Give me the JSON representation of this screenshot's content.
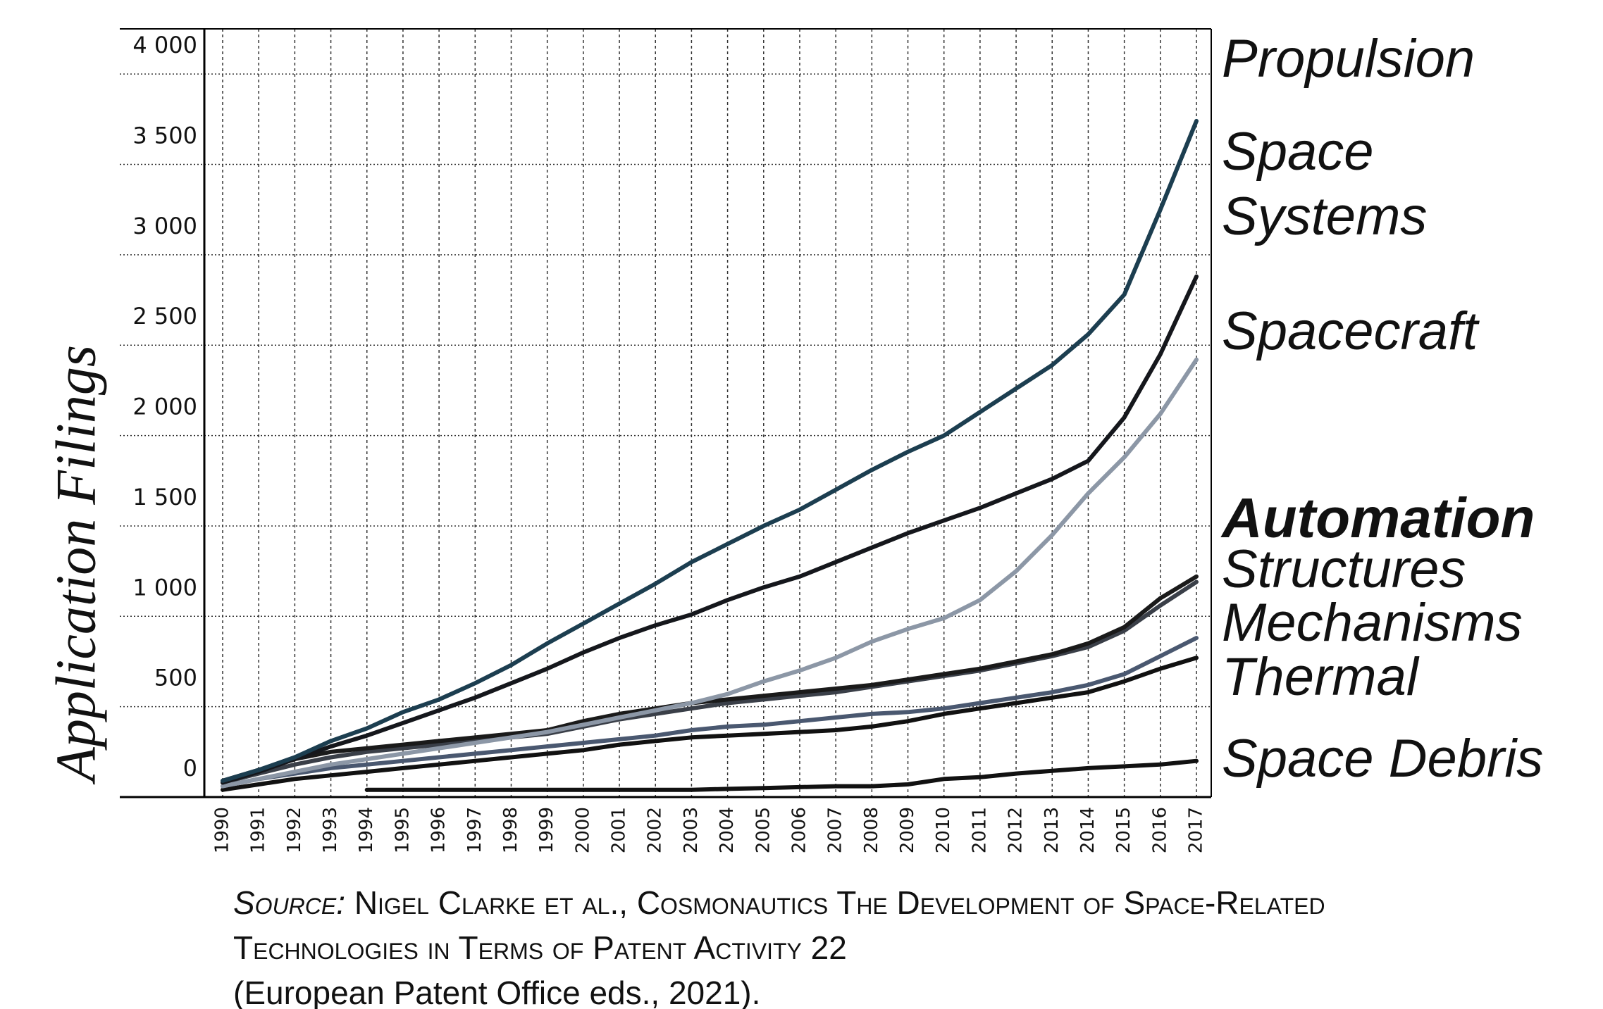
{
  "chart_data": {
    "type": "line",
    "y_label": "Application Filings",
    "categories": [
      "1990",
      "1991",
      "1992",
      "1993",
      "1994",
      "1995",
      "1996",
      "1997",
      "1998",
      "1999",
      "2000",
      "2001",
      "2002",
      "2003",
      "2004",
      "2005",
      "2006",
      "2007",
      "2008",
      "2009",
      "2010",
      "2011",
      "2012",
      "2013",
      "2014",
      "2015",
      "2016",
      "2017"
    ],
    "ylim": [
      0,
      4250
    ],
    "yticks": [
      0,
      500,
      {
        "value": 1000,
        "label": "1 000"
      },
      {
        "value": 1500,
        "label": "1 500"
      },
      {
        "value": 2000,
        "label": "2 000"
      },
      {
        "value": 2500,
        "label": "2 500"
      },
      {
        "value": 3000,
        "label": "3 000"
      },
      {
        "value": 3500,
        "label": "3 500"
      },
      {
        "value": 4000,
        "label": "4 000"
      }
    ],
    "grid": true,
    "series": [
      {
        "name": "Propulsion",
        "color": "#1c3e50",
        "values": [
          90,
          150,
          220,
          310,
          380,
          470,
          540,
          630,
          730,
          850,
          960,
          1070,
          1180,
          1300,
          1400,
          1500,
          1590,
          1700,
          1810,
          1910,
          2000,
          2130,
          2260,
          2390,
          2560,
          2780,
          3250,
          3740
        ]
      },
      {
        "name": "Space Systems",
        "color": "#15171c",
        "values": [
          80,
          140,
          210,
          280,
          340,
          410,
          480,
          550,
          630,
          710,
          800,
          880,
          950,
          1010,
          1090,
          1160,
          1220,
          1300,
          1380,
          1460,
          1530,
          1600,
          1680,
          1760,
          1860,
          2100,
          2450,
          2880
        ]
      },
      {
        "name": "Spacecraft",
        "color": "#8c97a6",
        "values": [
          60,
          100,
          140,
          180,
          210,
          240,
          270,
          300,
          330,
          360,
          400,
          440,
          480,
          520,
          570,
          640,
          700,
          770,
          860,
          930,
          990,
          1090,
          1250,
          1450,
          1680,
          1880,
          2120,
          2420
        ]
      },
      {
        "name": "Automation",
        "color": "#1a1a1a",
        "values": [
          90,
          150,
          210,
          250,
          270,
          290,
          310,
          330,
          350,
          370,
          420,
          460,
          490,
          520,
          540,
          560,
          580,
          600,
          620,
          650,
          680,
          710,
          750,
          790,
          850,
          940,
          1100,
          1220
        ]
      },
      {
        "name": "Structures",
        "color": "#3a3f48",
        "values": [
          80,
          130,
          180,
          220,
          250,
          270,
          290,
          310,
          330,
          350,
          390,
          430,
          460,
          490,
          520,
          540,
          560,
          580,
          610,
          640,
          670,
          700,
          740,
          780,
          830,
          920,
          1060,
          1190
        ]
      },
      {
        "name": "Mechanisms",
        "color": "#4a5870",
        "values": [
          60,
          100,
          130,
          160,
          180,
          200,
          220,
          240,
          260,
          280,
          300,
          320,
          340,
          370,
          390,
          400,
          420,
          440,
          460,
          470,
          490,
          520,
          550,
          580,
          620,
          680,
          780,
          880
        ]
      },
      {
        "name": "Thermal",
        "color": "#111111",
        "values": [
          40,
          70,
          100,
          120,
          140,
          160,
          180,
          200,
          220,
          240,
          260,
          290,
          310,
          330,
          340,
          350,
          360,
          370,
          390,
          420,
          460,
          490,
          520,
          550,
          580,
          640,
          710,
          770
        ]
      },
      {
        "name": "Space Debris",
        "color": "#111111",
        "values": [
          null,
          null,
          null,
          null,
          40,
          40,
          40,
          40,
          40,
          40,
          40,
          40,
          40,
          40,
          45,
          50,
          55,
          60,
          60,
          70,
          100,
          110,
          130,
          145,
          160,
          170,
          180,
          200
        ]
      }
    ],
    "source": {
      "label": "Source:",
      "citation": "Nigel Clarke et al., Cosmonautics The Development of Space-Related Technologies in Terms of Patent Activity 22",
      "publisher": "(European Patent Office eds., 2021)."
    }
  }
}
